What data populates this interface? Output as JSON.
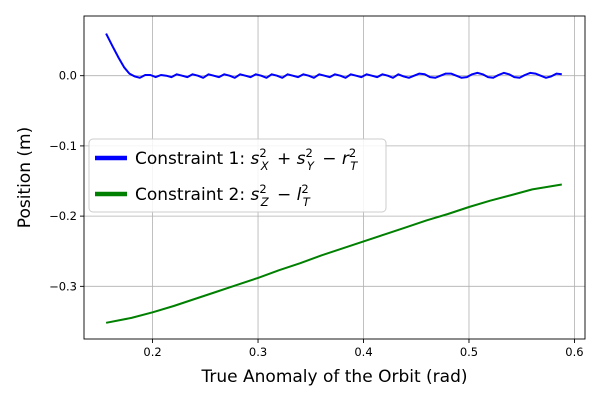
{
  "chart_data": {
    "type": "line",
    "title": "",
    "xlabel": "True Anomaly of the Orbit (rad)",
    "ylabel": "Position (m)",
    "xlim": [
      0.135,
      0.61
    ],
    "ylim": [
      -0.375,
      0.085
    ],
    "x_ticks": [
      0.2,
      0.3,
      0.4,
      0.5,
      0.6
    ],
    "x_tick_labels": [
      "0.2",
      "0.3",
      "0.4",
      "0.5",
      "0.6"
    ],
    "y_ticks": [
      0.0,
      -0.1,
      -0.2,
      -0.3
    ],
    "y_tick_labels": [
      "0.0",
      "−0.1",
      "−0.2",
      "−0.3"
    ],
    "grid": true,
    "legend_position": "center-left",
    "series": [
      {
        "name": "Constraint 1",
        "legend_math": "s_X^2 + s_Y^2 - r_T^2",
        "color": "#0000ff",
        "x": [
          0.156,
          0.162,
          0.168,
          0.173,
          0.178,
          0.183,
          0.188,
          0.193,
          0.198,
          0.203,
          0.208,
          0.213,
          0.218,
          0.223,
          0.228,
          0.233,
          0.238,
          0.243,
          0.248,
          0.253,
          0.258,
          0.263,
          0.268,
          0.273,
          0.278,
          0.283,
          0.288,
          0.293,
          0.298,
          0.303,
          0.308,
          0.313,
          0.318,
          0.323,
          0.328,
          0.333,
          0.338,
          0.343,
          0.348,
          0.353,
          0.358,
          0.363,
          0.368,
          0.373,
          0.378,
          0.383,
          0.388,
          0.393,
          0.398,
          0.403,
          0.408,
          0.413,
          0.418,
          0.423,
          0.428,
          0.433,
          0.438,
          0.443,
          0.448,
          0.453,
          0.458,
          0.463,
          0.468,
          0.473,
          0.478,
          0.483,
          0.488,
          0.493,
          0.498,
          0.503,
          0.508,
          0.513,
          0.518,
          0.523,
          0.528,
          0.533,
          0.538,
          0.543,
          0.548,
          0.553,
          0.558,
          0.563,
          0.568,
          0.573,
          0.578,
          0.583,
          0.588
        ],
        "y": [
          0.06,
          0.042,
          0.025,
          0.012,
          0.003,
          -0.001,
          -0.003,
          0.001,
          0.001,
          -0.002,
          0.001,
          0.0,
          -0.002,
          0.002,
          0.0,
          -0.002,
          0.002,
          0.0,
          -0.003,
          0.002,
          0.0,
          -0.002,
          0.002,
          0.0,
          -0.003,
          0.002,
          0.0,
          -0.002,
          0.002,
          0.0,
          -0.003,
          0.002,
          0.0,
          -0.003,
          0.002,
          0.0,
          -0.002,
          0.002,
          0.0,
          -0.003,
          0.002,
          0.0,
          -0.002,
          0.002,
          0.0,
          -0.003,
          0.002,
          0.0,
          -0.002,
          0.002,
          0.0,
          -0.002,
          0.002,
          0.0,
          -0.003,
          0.002,
          -0.001,
          -0.003,
          0.0,
          0.003,
          0.002,
          -0.002,
          -0.003,
          0.0,
          0.003,
          0.003,
          0.0,
          -0.003,
          -0.002,
          0.002,
          0.004,
          0.002,
          -0.002,
          -0.003,
          0.001,
          0.004,
          0.002,
          -0.002,
          -0.003,
          0.001,
          0.004,
          0.003,
          0.0,
          -0.003,
          -0.001,
          0.003,
          0.002
        ]
      },
      {
        "name": "Constraint 2",
        "legend_math": "s_Z^2 - l_T^2",
        "color": "#008000",
        "x": [
          0.156,
          0.18,
          0.2,
          0.22,
          0.24,
          0.26,
          0.28,
          0.3,
          0.32,
          0.34,
          0.36,
          0.38,
          0.4,
          0.42,
          0.44,
          0.46,
          0.48,
          0.5,
          0.52,
          0.54,
          0.56,
          0.588
        ],
        "y": [
          -0.352,
          -0.345,
          -0.337,
          -0.328,
          -0.318,
          -0.308,
          -0.298,
          -0.288,
          -0.277,
          -0.267,
          -0.256,
          -0.246,
          -0.236,
          -0.226,
          -0.216,
          -0.206,
          -0.197,
          -0.187,
          -0.178,
          -0.17,
          -0.162,
          -0.155
        ]
      }
    ]
  }
}
